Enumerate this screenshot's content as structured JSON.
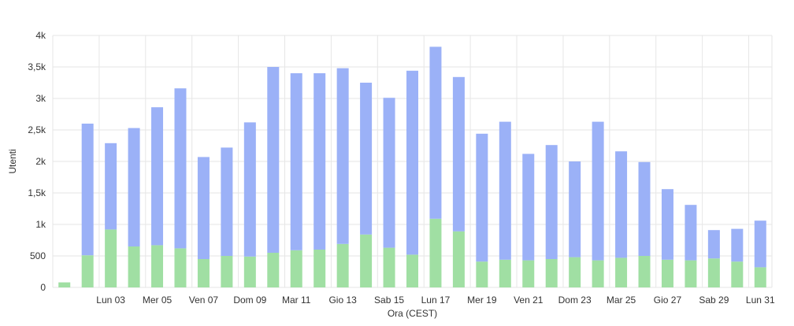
{
  "chart_data": {
    "type": "bar",
    "stacked": true,
    "xlabel": "Ora (CEST)",
    "ylabel": "Utenti",
    "ylim": [
      0,
      4000
    ],
    "yticks": [
      {
        "value": 0,
        "label": "0"
      },
      {
        "value": 500,
        "label": "500"
      },
      {
        "value": 1000,
        "label": "1k"
      },
      {
        "value": 1500,
        "label": "1,5k"
      },
      {
        "value": 2000,
        "label": "2k"
      },
      {
        "value": 2500,
        "label": "2,5k"
      },
      {
        "value": 3000,
        "label": "3k"
      },
      {
        "value": 3500,
        "label": "3,5k"
      },
      {
        "value": 4000,
        "label": "4k"
      }
    ],
    "xtick_labels": [
      {
        "index": 2,
        "label": "Lun 03"
      },
      {
        "index": 4,
        "label": "Mer 05"
      },
      {
        "index": 6,
        "label": "Ven 07"
      },
      {
        "index": 8,
        "label": "Dom 09"
      },
      {
        "index": 10,
        "label": "Mar 11"
      },
      {
        "index": 12,
        "label": "Gio 13"
      },
      {
        "index": 14,
        "label": "Sab 15"
      },
      {
        "index": 16,
        "label": "Lun 17"
      },
      {
        "index": 18,
        "label": "Mer 19"
      },
      {
        "index": 20,
        "label": "Ven 21"
      },
      {
        "index": 22,
        "label": "Dom 23"
      },
      {
        "index": 24,
        "label": "Mar 25"
      },
      {
        "index": 26,
        "label": "Gio 27"
      },
      {
        "index": 28,
        "label": "Sab 29"
      },
      {
        "index": 30,
        "label": "Lun 31"
      }
    ],
    "grid": true,
    "legend": "none",
    "series": [
      {
        "color": "#a0dfa3",
        "values": [
          80,
          510,
          920,
          650,
          670,
          620,
          450,
          500,
          490,
          550,
          590,
          600,
          690,
          840,
          630,
          520,
          1090,
          890,
          410,
          440,
          430,
          450,
          480,
          430,
          470,
          500,
          440,
          430,
          460,
          410,
          320
        ]
      },
      {
        "color": "#9bb1f7",
        "values": [
          0,
          2090,
          1370,
          1880,
          2190,
          2540,
          1620,
          1720,
          2130,
          2950,
          2810,
          2800,
          2790,
          2410,
          2380,
          2920,
          2730,
          2450,
          2030,
          2190,
          1690,
          1810,
          1520,
          2200,
          1690,
          1490,
          1120,
          880,
          450,
          520,
          740
        ]
      }
    ]
  }
}
